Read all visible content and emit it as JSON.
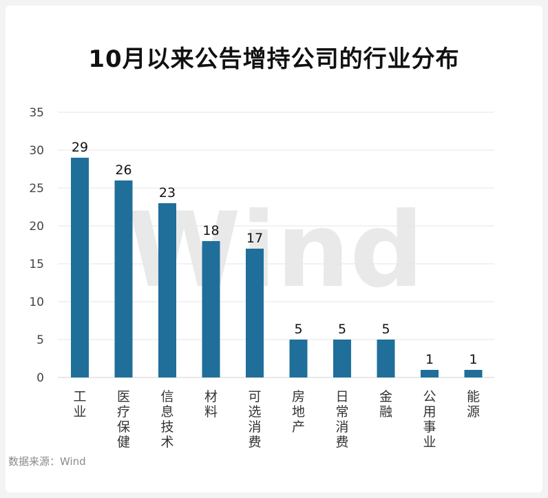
{
  "chart_data": {
    "type": "bar",
    "title": "10月以来公告增持公司的行业分布",
    "categories": [
      "工业",
      "医疗保健",
      "信息技术",
      "材料",
      "可选消费",
      "房地产",
      "日常消费",
      "金融",
      "公用事业",
      "能源"
    ],
    "values": [
      29,
      26,
      23,
      18,
      17,
      5,
      5,
      5,
      1,
      1
    ],
    "data_labels": [
      "29",
      "26",
      "23",
      "18",
      "17",
      "5",
      "5",
      "5",
      "1",
      "1"
    ],
    "xlabel": "",
    "ylabel": "",
    "ylim": [
      0,
      35
    ],
    "yticks": [
      0,
      5,
      10,
      15,
      20,
      25,
      30,
      35
    ],
    "ytick_labels": [
      "0",
      "5",
      "10",
      "15",
      "20",
      "25",
      "30",
      "35"
    ],
    "grid": true,
    "legend": "none",
    "bar_color": "#1f6f9a",
    "watermark": "Wind",
    "source": "数据来源：Wind"
  }
}
